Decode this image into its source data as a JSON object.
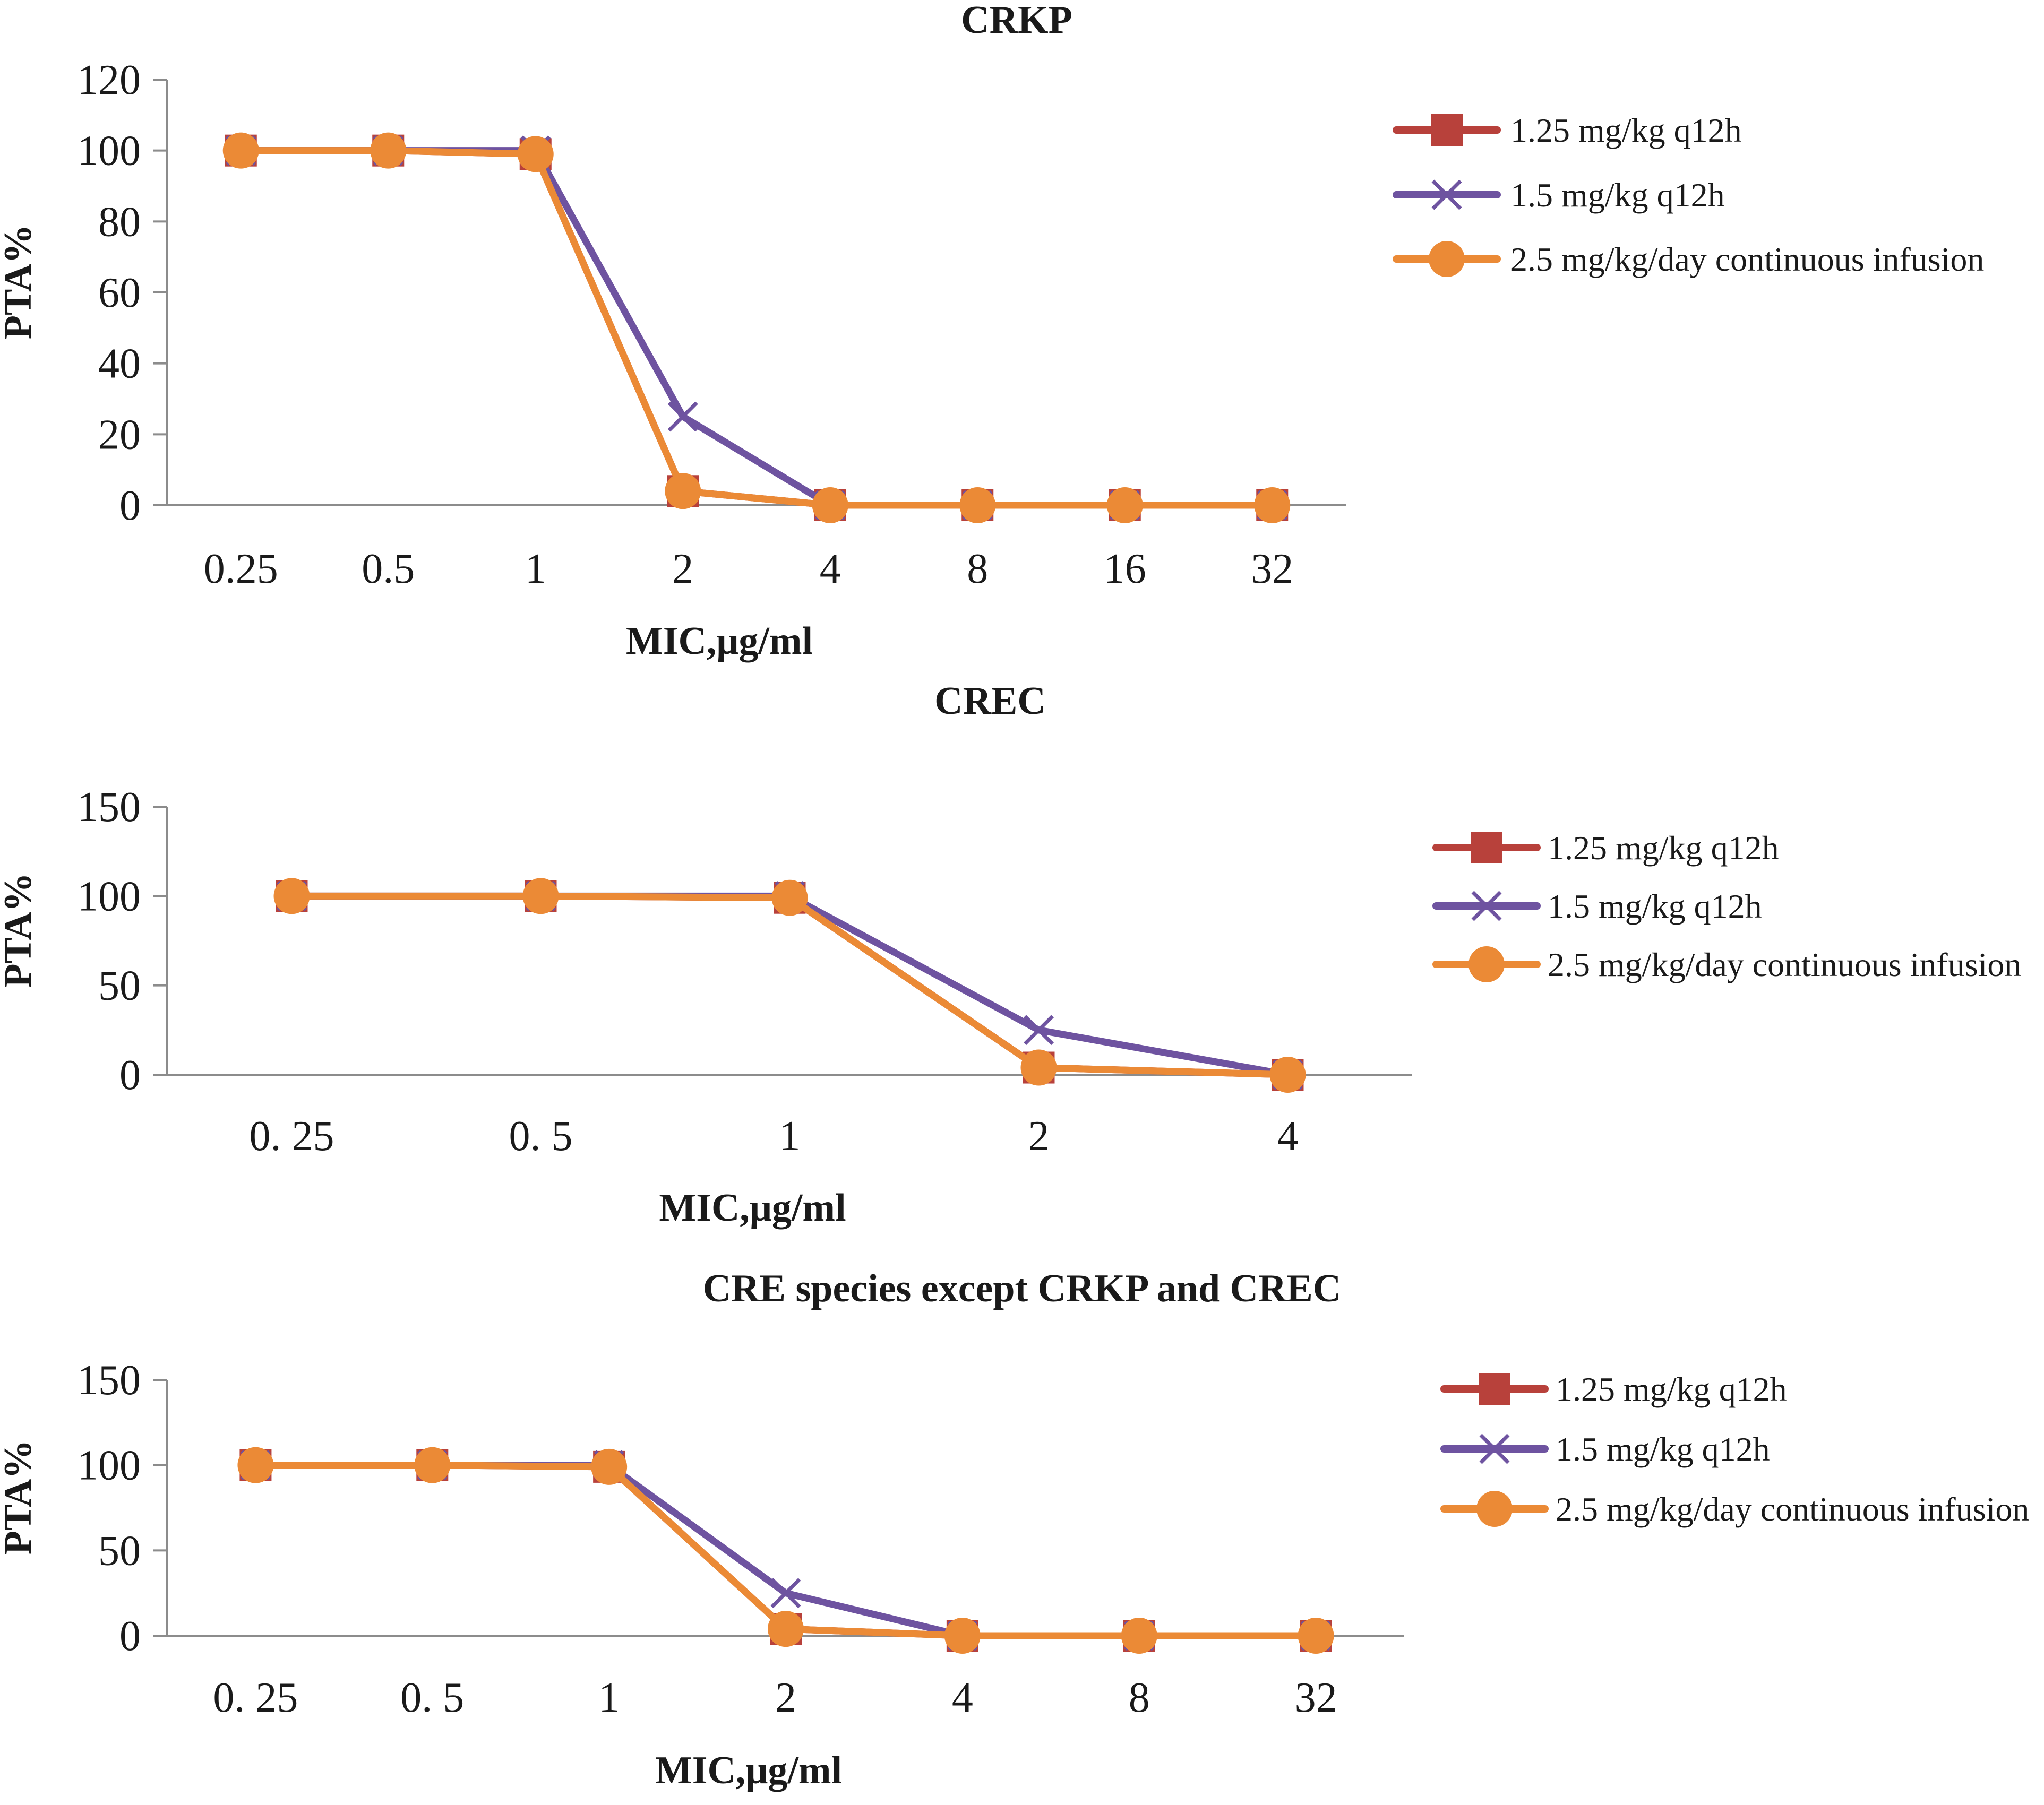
{
  "chart_data": [
    {
      "type": "line",
      "title": "CRKP",
      "xlabel": "MIC,μg/ml",
      "ylabel": "PTA%",
      "categories": [
        "0.25",
        "0.5",
        "1",
        "2",
        "4",
        "8",
        "16",
        "32"
      ],
      "ylim": [
        0,
        120
      ],
      "yticks": [
        "0",
        "20",
        "40",
        "60",
        "80",
        "100",
        "120"
      ],
      "legend_position": "right",
      "series": [
        {
          "name": "1.25 mg/kg q12h",
          "color": "#b8413b",
          "marker": "square",
          "values": [
            100,
            100,
            99,
            4,
            0,
            0,
            0,
            0
          ]
        },
        {
          "name": "1.5 mg/kg q12h",
          "color": "#6e53a0",
          "marker": "x",
          "values": [
            100,
            100,
            100,
            25,
            0,
            0,
            0,
            0
          ]
        },
        {
          "name": "2.5 mg/kg/day continuous infusion",
          "color": "#eb8a36",
          "marker": "circle",
          "values": [
            100,
            100,
            99,
            4,
            0,
            0,
            0,
            0
          ]
        }
      ]
    },
    {
      "type": "line",
      "title": "CREC",
      "xlabel": "MIC,μg/ml",
      "ylabel": "PTA%",
      "categories": [
        "0. 25",
        "0. 5",
        "1",
        "2",
        "4"
      ],
      "ylim": [
        0,
        150
      ],
      "yticks": [
        "0",
        "50",
        "100",
        "150"
      ],
      "legend_position": "right",
      "series": [
        {
          "name": "1.25 mg/kg q12h",
          "color": "#b8413b",
          "marker": "square",
          "values": [
            100,
            100,
            99,
            4,
            0
          ]
        },
        {
          "name": "1.5 mg/kg q12h",
          "color": "#6e53a0",
          "marker": "x",
          "values": [
            100,
            100,
            100,
            25,
            0
          ]
        },
        {
          "name": "2.5 mg/kg/day continuous infusion",
          "color": "#eb8a36",
          "marker": "circle",
          "values": [
            100,
            100,
            99,
            4,
            0
          ]
        }
      ]
    },
    {
      "type": "line",
      "title": "CRE species except CRKP and CREC",
      "xlabel": "MIC,μg/ml",
      "ylabel": "PTA%",
      "categories": [
        "0. 25",
        "0. 5",
        "1",
        "2",
        "4",
        "8",
        "32"
      ],
      "ylim": [
        0,
        150
      ],
      "yticks": [
        "0",
        "50",
        "100",
        "150"
      ],
      "legend_position": "right",
      "series": [
        {
          "name": "1.25 mg/kg q12h",
          "color": "#b8413b",
          "marker": "square",
          "values": [
            100,
            100,
            99,
            4,
            0,
            0,
            0
          ]
        },
        {
          "name": "1.5 mg/kg q12h",
          "color": "#6e53a0",
          "marker": "x",
          "values": [
            100,
            100,
            100,
            25,
            0,
            0,
            0
          ]
        },
        {
          "name": "2.5 mg/kg/day continuous infusion",
          "color": "#eb8a36",
          "marker": "circle",
          "values": [
            100,
            100,
            99,
            4,
            0,
            0,
            0
          ]
        }
      ]
    }
  ]
}
